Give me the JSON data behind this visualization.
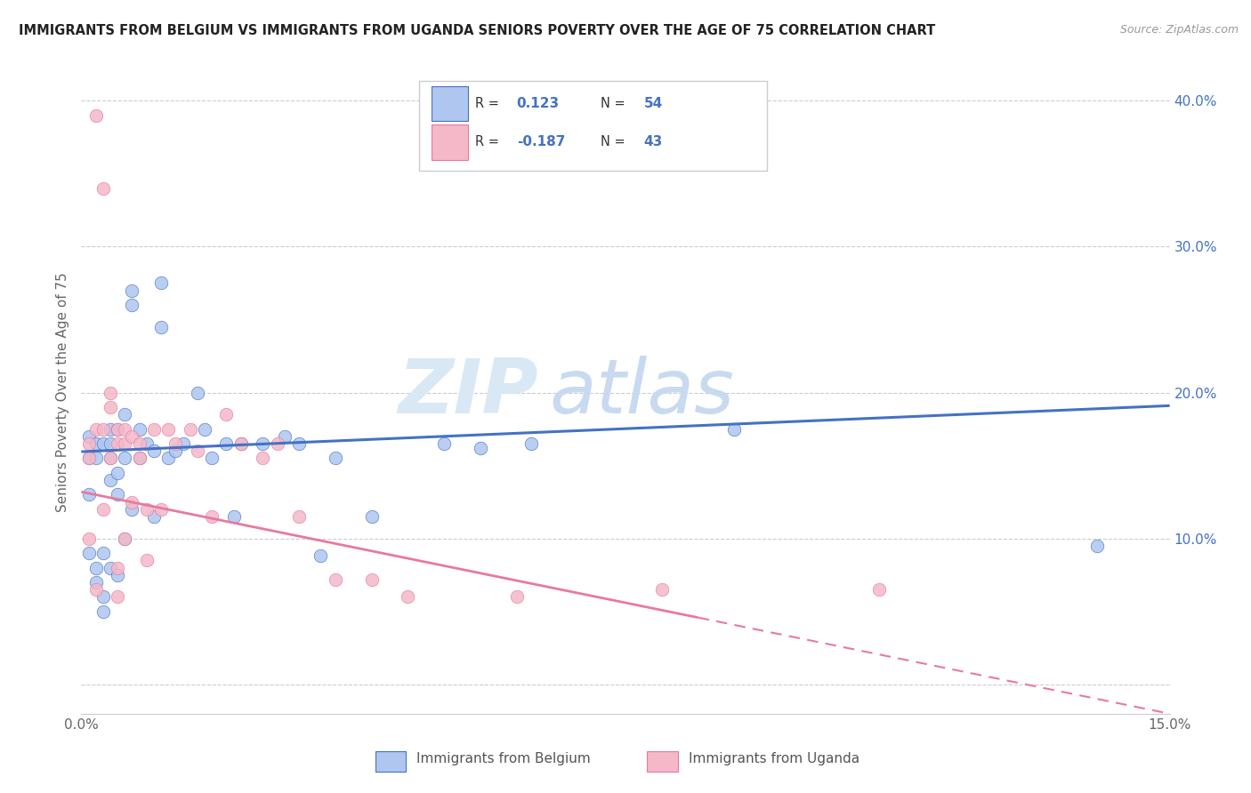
{
  "title": "IMMIGRANTS FROM BELGIUM VS IMMIGRANTS FROM UGANDA SENIORS POVERTY OVER THE AGE OF 75 CORRELATION CHART",
  "source": "Source: ZipAtlas.com",
  "ylabel": "Seniors Poverty Over the Age of 75",
  "xlim": [
    0.0,
    0.15
  ],
  "ylim": [
    -0.02,
    0.42
  ],
  "yticks_right": [
    0.0,
    0.1,
    0.2,
    0.3,
    0.4
  ],
  "ytick_labels_right": [
    "",
    "10.0%",
    "20.0%",
    "30.0%",
    "40.0%"
  ],
  "R_belgium": 0.123,
  "N_belgium": 54,
  "R_uganda": -0.187,
  "N_uganda": 43,
  "color_belgium": "#aec6f0",
  "color_uganda": "#f4b8c8",
  "line_color_belgium": "#4472c4",
  "line_color_uganda": "#e8799f",
  "legend_label_belgium": "Immigrants from Belgium",
  "legend_label_uganda": "Immigrants from Uganda",
  "watermark": "ZIPatlas",
  "belgium_line": [
    0.0,
    0.1595,
    0.15,
    0.191
  ],
  "uganda_line": [
    0.0,
    0.132,
    0.15,
    -0.02
  ],
  "belgium_x": [
    0.001,
    0.001,
    0.001,
    0.001,
    0.002,
    0.002,
    0.002,
    0.002,
    0.003,
    0.003,
    0.003,
    0.003,
    0.004,
    0.004,
    0.004,
    0.004,
    0.004,
    0.005,
    0.005,
    0.005,
    0.005,
    0.006,
    0.006,
    0.006,
    0.007,
    0.007,
    0.007,
    0.008,
    0.008,
    0.009,
    0.01,
    0.01,
    0.011,
    0.011,
    0.012,
    0.013,
    0.014,
    0.016,
    0.017,
    0.018,
    0.02,
    0.021,
    0.022,
    0.025,
    0.028,
    0.03,
    0.033,
    0.035,
    0.04,
    0.05,
    0.055,
    0.062,
    0.09,
    0.14
  ],
  "belgium_y": [
    0.155,
    0.17,
    0.13,
    0.09,
    0.165,
    0.155,
    0.08,
    0.07,
    0.165,
    0.09,
    0.06,
    0.05,
    0.175,
    0.165,
    0.155,
    0.14,
    0.08,
    0.175,
    0.145,
    0.13,
    0.075,
    0.185,
    0.155,
    0.1,
    0.27,
    0.26,
    0.12,
    0.175,
    0.155,
    0.165,
    0.16,
    0.115,
    0.275,
    0.245,
    0.155,
    0.16,
    0.165,
    0.2,
    0.175,
    0.155,
    0.165,
    0.115,
    0.165,
    0.165,
    0.17,
    0.165,
    0.088,
    0.155,
    0.115,
    0.165,
    0.162,
    0.165,
    0.175,
    0.095
  ],
  "uganda_x": [
    0.001,
    0.001,
    0.001,
    0.002,
    0.002,
    0.002,
    0.003,
    0.003,
    0.003,
    0.004,
    0.004,
    0.004,
    0.005,
    0.005,
    0.005,
    0.005,
    0.006,
    0.006,
    0.006,
    0.007,
    0.007,
    0.008,
    0.008,
    0.009,
    0.009,
    0.01,
    0.011,
    0.012,
    0.013,
    0.015,
    0.016,
    0.018,
    0.02,
    0.022,
    0.025,
    0.027,
    0.03,
    0.035,
    0.04,
    0.045,
    0.06,
    0.08,
    0.11
  ],
  "uganda_y": [
    0.155,
    0.165,
    0.1,
    0.39,
    0.175,
    0.065,
    0.34,
    0.175,
    0.12,
    0.2,
    0.19,
    0.155,
    0.175,
    0.165,
    0.08,
    0.06,
    0.175,
    0.165,
    0.1,
    0.17,
    0.125,
    0.165,
    0.155,
    0.12,
    0.085,
    0.175,
    0.12,
    0.175,
    0.165,
    0.175,
    0.16,
    0.115,
    0.185,
    0.165,
    0.155,
    0.165,
    0.115,
    0.072,
    0.072,
    0.06,
    0.06,
    0.065,
    0.065
  ]
}
